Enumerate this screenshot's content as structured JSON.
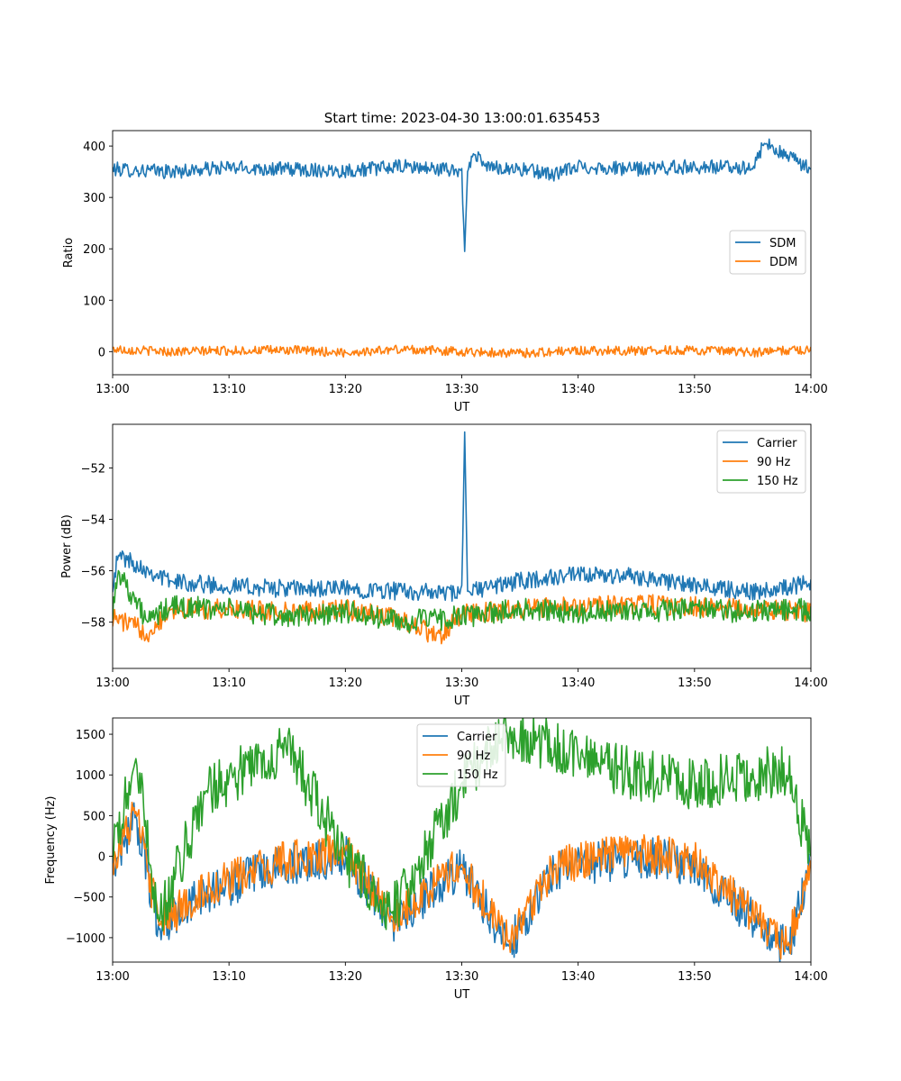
{
  "figure": {
    "title": "Start time: 2023-04-30 13:00:01.635453"
  },
  "chart_data": [
    {
      "type": "line",
      "title": "Start time: 2023-04-30 13:00:01.635453",
      "xlabel": "UT",
      "ylabel": "Ratio",
      "xlim": [
        "13:00",
        "14:00"
      ],
      "xticks": [
        "13:00",
        "13:10",
        "13:20",
        "13:30",
        "13:40",
        "13:50",
        "14:00"
      ],
      "ylim": [
        -45,
        430
      ],
      "yticks": [
        0,
        100,
        200,
        300,
        400
      ],
      "ytick_labels": [
        "0",
        "100",
        "200",
        "300",
        "400"
      ],
      "grid": false,
      "legend": "center-right",
      "series": [
        {
          "name": "SDM",
          "color": "#1f77b4",
          "x": [
            "13:00",
            "13:05",
            "13:10",
            "13:15",
            "13:20",
            "13:25",
            "13:30",
            "13:30:15",
            "13:30:30",
            "13:31",
            "13:32",
            "13:35",
            "13:38",
            "13:40",
            "13:45",
            "13:50",
            "13:55",
            "13:56",
            "14:00"
          ],
          "y": [
            355,
            350,
            358,
            355,
            352,
            360,
            352,
            195,
            350,
            385,
            360,
            355,
            345,
            360,
            355,
            360,
            358,
            405,
            355
          ]
        },
        {
          "name": "DDM",
          "color": "#ff7f0e",
          "x": [
            "13:00",
            "13:05",
            "13:10",
            "13:15",
            "13:20",
            "13:25",
            "13:30",
            "13:35",
            "13:40",
            "13:45",
            "13:50",
            "13:55",
            "14:00"
          ],
          "y": [
            5,
            0,
            2,
            3,
            -2,
            5,
            0,
            -3,
            2,
            2,
            3,
            -2,
            5
          ]
        }
      ]
    },
    {
      "type": "line",
      "title": "",
      "xlabel": "UT",
      "ylabel": "Power (dB)",
      "xlim": [
        "13:00",
        "14:00"
      ],
      "xticks": [
        "13:00",
        "13:10",
        "13:20",
        "13:30",
        "13:40",
        "13:50",
        "14:00"
      ],
      "ylim": [
        -59.8,
        -50.3
      ],
      "yticks": [
        -58,
        -56,
        -54,
        -52
      ],
      "ytick_labels": [
        "−58",
        "−56",
        "−54",
        "−52"
      ],
      "grid": false,
      "legend": "top-right",
      "series": [
        {
          "name": "Carrier",
          "color": "#1f77b4",
          "x": [
            "13:00",
            "13:00:30",
            "13:05",
            "13:10",
            "13:15",
            "13:20",
            "13:25",
            "13:30",
            "13:30:15",
            "13:30:30",
            "13:35",
            "13:39",
            "13:40",
            "13:45",
            "13:50",
            "13:55",
            "14:00"
          ],
          "y": [
            -56.5,
            -55.4,
            -56.4,
            -56.6,
            -56.7,
            -56.7,
            -56.8,
            -56.9,
            -50.6,
            -56.8,
            -56.4,
            -56.2,
            -56.2,
            -56.2,
            -56.6,
            -56.8,
            -56.5
          ]
        },
        {
          "name": "90 Hz",
          "color": "#ff7f0e",
          "x": [
            "13:00",
            "13:03",
            "13:05",
            "13:10",
            "13:15",
            "13:20",
            "13:25",
            "13:28",
            "13:30",
            "13:35",
            "13:40",
            "13:45",
            "13:50",
            "13:55",
            "14:00"
          ],
          "y": [
            -57.8,
            -58.4,
            -57.5,
            -57.5,
            -57.6,
            -57.5,
            -57.9,
            -58.6,
            -57.7,
            -57.5,
            -57.4,
            -57.3,
            -57.4,
            -57.5,
            -57.6
          ]
        },
        {
          "name": "150 Hz",
          "color": "#2ca02c",
          "x": [
            "13:00",
            "13:00:30",
            "13:03",
            "13:05",
            "13:10",
            "13:15",
            "13:20",
            "13:25",
            "13:30",
            "13:35",
            "13:40",
            "13:45",
            "13:50",
            "13:55",
            "14:00"
          ],
          "y": [
            -57.5,
            -56.0,
            -58.0,
            -57.4,
            -57.5,
            -57.8,
            -57.6,
            -58.0,
            -57.8,
            -57.5,
            -57.6,
            -57.6,
            -57.5,
            -57.6,
            -57.5
          ]
        }
      ]
    },
    {
      "type": "line",
      "title": "",
      "xlabel": "UT",
      "ylabel": "Frequency (Hz)",
      "xlim": [
        "13:00",
        "14:00"
      ],
      "xticks": [
        "13:00",
        "13:10",
        "13:20",
        "13:30",
        "13:40",
        "13:50",
        "14:00"
      ],
      "ylim": [
        -1300,
        1700
      ],
      "yticks": [
        -1000,
        -500,
        0,
        500,
        1000,
        1500
      ],
      "ytick_labels": [
        "−1000",
        "−500",
        "0",
        "500",
        "1000",
        "1500"
      ],
      "grid": false,
      "legend": "top-center",
      "series": [
        {
          "name": "Carrier",
          "color": "#1f77b4",
          "x": [
            "13:00",
            "13:02",
            "13:04",
            "13:08",
            "13:15",
            "13:20",
            "13:24",
            "13:30",
            "13:34",
            "13:38",
            "13:45",
            "13:50",
            "13:58",
            "14:00"
          ],
          "y": [
            -100,
            500,
            -900,
            -450,
            -100,
            0,
            -800,
            -150,
            -1100,
            -150,
            0,
            -100,
            -1150,
            -100
          ]
        },
        {
          "name": "90 Hz",
          "color": "#ff7f0e",
          "x": [
            "13:00",
            "13:02",
            "13:04",
            "13:08",
            "13:15",
            "13:20",
            "13:24",
            "13:30",
            "13:34",
            "13:38",
            "13:45",
            "13:50",
            "13:58",
            "14:00"
          ],
          "y": [
            -50,
            550,
            -850,
            -400,
            -50,
            50,
            -750,
            -100,
            -1050,
            -100,
            50,
            -50,
            -1100,
            -50
          ]
        },
        {
          "name": "150 Hz",
          "color": "#2ca02c",
          "x": [
            "13:00",
            "13:02",
            "13:04",
            "13:08",
            "13:15",
            "13:20",
            "13:24",
            "13:30",
            "13:34",
            "13:38",
            "13:45",
            "13:50",
            "13:58",
            "14:00"
          ],
          "y": [
            0,
            1200,
            -800,
            800,
            1350,
            0,
            -700,
            900,
            1550,
            1350,
            1000,
            900,
            1050,
            0
          ]
        }
      ]
    }
  ]
}
